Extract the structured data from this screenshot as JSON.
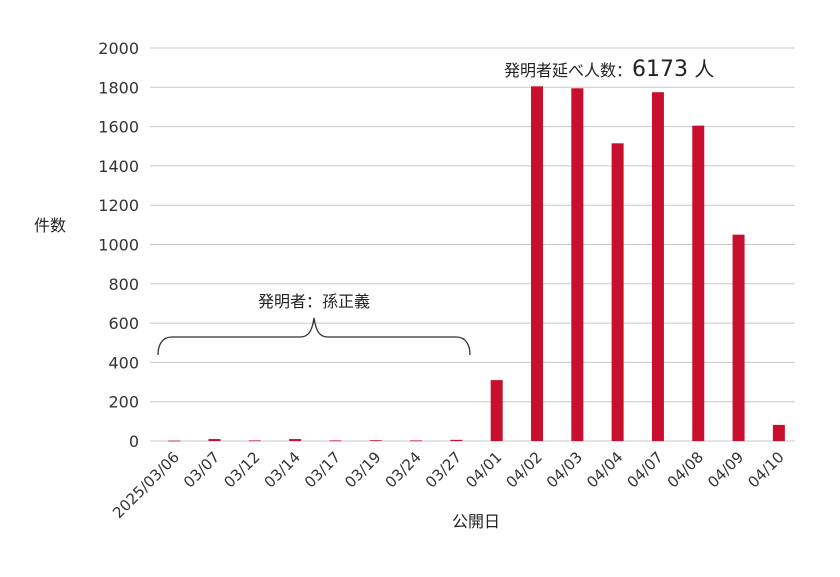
{
  "chart_data": {
    "type": "bar",
    "xlabel": "公開日",
    "ylabel": "件数",
    "ylim": [
      0,
      2000
    ],
    "yticks": [
      0,
      200,
      400,
      600,
      800,
      1000,
      1200,
      1400,
      1600,
      1800,
      2000
    ],
    "grid": true,
    "categories": [
      "2025/03/06",
      "03/07",
      "03/12",
      "03/14",
      "03/17",
      "03/19",
      "03/24",
      "03/27",
      "04/01",
      "04/02",
      "04/03",
      "04/04",
      "04/07",
      "04/08",
      "04/09",
      "04/10"
    ],
    "values": [
      2,
      10,
      3,
      10,
      3,
      4,
      3,
      6,
      310,
      1805,
      1795,
      1515,
      1775,
      1605,
      1050,
      82
    ],
    "color": "#c8102e",
    "annotations": {
      "total": {
        "prefix": "発明者延べ人数：",
        "value": "6173",
        "suffix": " 人"
      },
      "bracket_label": "発明者：孫正義"
    }
  }
}
